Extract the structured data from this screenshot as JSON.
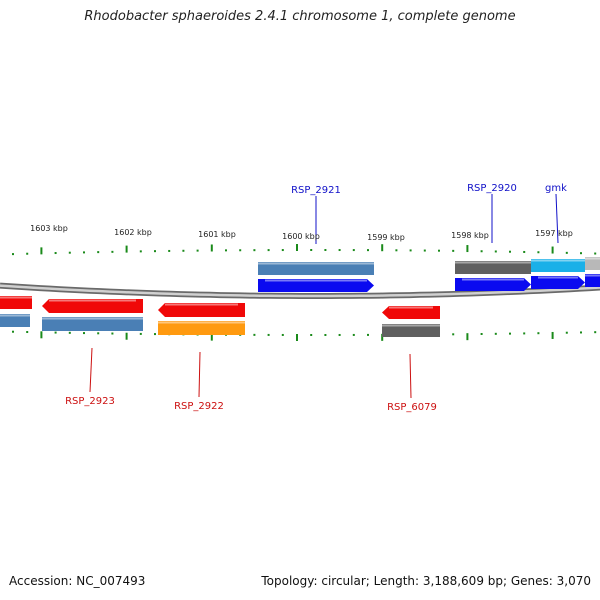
{
  "title": "Rhodobacter sphaeroides 2.4.1 chromosome 1, complete genome",
  "footer": {
    "accession": "Accession: NC_007493",
    "summary": "Topology: circular; Length: 3,188,609 bp; Genes: 3,070"
  },
  "colors": {
    "tick": "#1a8a1a",
    "backbone": "#8a8a8a",
    "label_blue": "#1010c8",
    "label_red": "#cc1010",
    "steelblue": "#4a7fb5",
    "blue": "#0a0af0",
    "red": "#f00808",
    "orange": "#ff9a10",
    "gray": "#606060",
    "cyan": "#1ab0e8",
    "lightgray": "#b8b8b8"
  },
  "ruler": {
    "unit": "kbp",
    "labels": [
      "1603 kbp",
      "1602 kbp",
      "1601 kbp",
      "1600 kbp",
      "1599 kbp",
      "1598 kbp",
      "1597 kbp"
    ]
  },
  "gene_labels": [
    {
      "name": "RSP_2921",
      "color": "blue"
    },
    {
      "name": "RSP_2920",
      "color": "blue"
    },
    {
      "name": "gmk",
      "color": "blue"
    },
    {
      "name": "RSP_2923",
      "color": "red"
    },
    {
      "name": "RSP_2922",
      "color": "red"
    },
    {
      "name": "RSP_6079",
      "color": "red"
    }
  ]
}
